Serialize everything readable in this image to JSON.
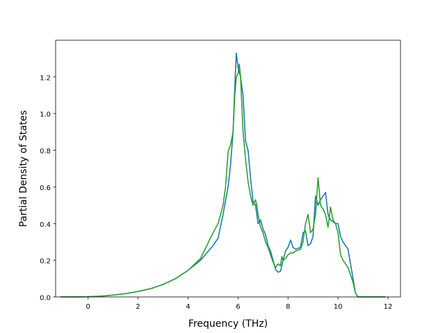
{
  "chart_data": {
    "type": "line",
    "xlabel": "Frequency (THz)",
    "ylabel": "Partial Density of States",
    "xlim": [
      -1.3,
      12.5
    ],
    "ylim": [
      0.0,
      1.4
    ],
    "xticks": [
      0,
      2,
      4,
      6,
      8,
      10,
      12
    ],
    "yticks": [
      0.0,
      0.2,
      0.4,
      0.6,
      0.8,
      1.0,
      1.2
    ],
    "xtick_labels": [
      "0",
      "2",
      "4",
      "6",
      "8",
      "10",
      "12"
    ],
    "ytick_labels": [
      "0.0",
      "0.2",
      "0.4",
      "0.6",
      "0.8",
      "1.0",
      "1.2"
    ],
    "grid": false,
    "series": [
      {
        "color": "#1f77b4",
        "x": [
          -1.1,
          -0.5,
          0,
          0.5,
          1.0,
          1.5,
          2.0,
          2.5,
          3.0,
          3.5,
          4.0,
          4.5,
          5.0,
          5.2,
          5.4,
          5.6,
          5.7,
          5.8,
          5.87,
          5.93,
          6.0,
          6.1,
          6.2,
          6.3,
          6.4,
          6.5,
          6.6,
          6.7,
          6.8,
          6.9,
          7.0,
          7.1,
          7.2,
          7.3,
          7.4,
          7.5,
          7.6,
          7.7,
          7.8,
          7.9,
          8.0,
          8.1,
          8.2,
          8.3,
          8.5,
          8.6,
          8.7,
          8.8,
          8.9,
          9.0,
          9.1,
          9.2,
          9.3,
          9.4,
          9.5,
          9.6,
          9.7,
          9.8,
          9.9,
          10.0,
          10.1,
          10.2,
          10.3,
          10.4,
          10.5,
          10.6,
          10.7,
          10.8,
          11.0,
          11.5,
          11.9
        ],
        "y": [
          0.0,
          0.0,
          0.001,
          0.004,
          0.01,
          0.018,
          0.03,
          0.045,
          0.068,
          0.1,
          0.145,
          0.2,
          0.28,
          0.32,
          0.45,
          0.6,
          0.72,
          0.9,
          1.15,
          1.33,
          1.25,
          1.2,
          1.1,
          0.85,
          0.8,
          0.65,
          0.52,
          0.5,
          0.4,
          0.42,
          0.37,
          0.34,
          0.28,
          0.25,
          0.2,
          0.15,
          0.135,
          0.14,
          0.2,
          0.25,
          0.27,
          0.31,
          0.27,
          0.26,
          0.27,
          0.35,
          0.36,
          0.28,
          0.29,
          0.33,
          0.55,
          0.5,
          0.53,
          0.55,
          0.57,
          0.45,
          0.42,
          0.41,
          0.4,
          0.4,
          0.33,
          0.3,
          0.28,
          0.26,
          0.18,
          0.1,
          0.02,
          0.0,
          0.0,
          0.0,
          0.0
        ]
      },
      {
        "color": "#2ca02c",
        "x": [
          -1.1,
          -0.5,
          0,
          0.5,
          1.0,
          1.5,
          2.0,
          2.5,
          3.0,
          3.5,
          4.0,
          4.5,
          5.0,
          5.2,
          5.4,
          5.5,
          5.6,
          5.7,
          5.8,
          5.87,
          5.93,
          6.0,
          6.05,
          6.1,
          6.2,
          6.3,
          6.4,
          6.5,
          6.6,
          6.7,
          6.75,
          6.8,
          6.9,
          7.0,
          7.1,
          7.2,
          7.3,
          7.4,
          7.5,
          7.6,
          7.7,
          7.75,
          7.8,
          7.9,
          8.0,
          8.1,
          8.2,
          8.3,
          8.5,
          8.6,
          8.7,
          8.8,
          8.9,
          9.0,
          9.1,
          9.2,
          9.3,
          9.4,
          9.5,
          9.6,
          9.7,
          9.8,
          9.9,
          10.0,
          10.1,
          10.2,
          10.3,
          10.4,
          10.5,
          10.6,
          10.7,
          10.8,
          11.0,
          11.5,
          11.9
        ],
        "y": [
          0.0,
          0.0,
          0.001,
          0.004,
          0.01,
          0.018,
          0.03,
          0.045,
          0.068,
          0.1,
          0.145,
          0.21,
          0.35,
          0.4,
          0.5,
          0.6,
          0.79,
          0.83,
          0.9,
          1.1,
          1.2,
          1.22,
          1.27,
          1.2,
          0.9,
          0.75,
          0.63,
          0.55,
          0.5,
          0.53,
          0.5,
          0.45,
          0.38,
          0.35,
          0.3,
          0.27,
          0.23,
          0.19,
          0.16,
          0.18,
          0.17,
          0.22,
          0.2,
          0.21,
          0.23,
          0.24,
          0.24,
          0.25,
          0.26,
          0.3,
          0.4,
          0.45,
          0.35,
          0.37,
          0.45,
          0.65,
          0.5,
          0.48,
          0.45,
          0.38,
          0.49,
          0.42,
          0.4,
          0.35,
          0.23,
          0.2,
          0.18,
          0.16,
          0.12,
          0.08,
          0.02,
          0.0,
          0.0,
          0.0,
          0.0
        ]
      }
    ]
  }
}
